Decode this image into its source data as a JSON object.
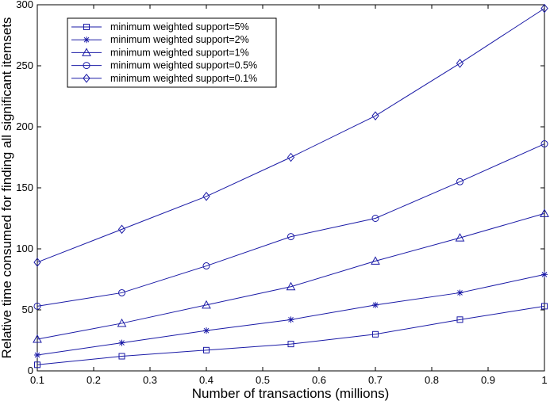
{
  "chart_data": {
    "type": "line",
    "title": "",
    "xlabel": "Number of transactions (millions)",
    "ylabel": "Relative time consumed for finding all significant itemsets",
    "x": [
      0.1,
      0.25,
      0.4,
      0.55,
      0.7,
      0.85,
      1.0
    ],
    "xlim": [
      0.1,
      1.0
    ],
    "ylim": [
      0,
      300
    ],
    "xticks": [
      "0.1",
      "0.2",
      "0.3",
      "0.4",
      "0.5",
      "0.6",
      "0.7",
      "0.8",
      "0.9",
      "1"
    ],
    "xtick_values": [
      0.1,
      0.2,
      0.3,
      0.4,
      0.5,
      0.6,
      0.7,
      0.8,
      0.9,
      1.0
    ],
    "yticks": [
      "0",
      "50",
      "100",
      "150",
      "200",
      "250",
      "300"
    ],
    "ytick_values": [
      0,
      50,
      100,
      150,
      200,
      250,
      300
    ],
    "grid": false,
    "legend_position": "top-left",
    "line_color": "#1a1aa6",
    "series": [
      {
        "name": "minimum weighted support=5%",
        "marker": "square",
        "values": [
          5,
          12,
          17,
          22,
          30,
          42,
          53
        ]
      },
      {
        "name": "minimum weighted support=2%",
        "marker": "star",
        "values": [
          13,
          23,
          33,
          42,
          54,
          64,
          79
        ]
      },
      {
        "name": "minimum weighted support=1%",
        "marker": "triangle",
        "values": [
          26,
          39,
          54,
          69,
          90,
          109,
          129
        ]
      },
      {
        "name": "minimum weighted support=0.5%",
        "marker": "circle",
        "values": [
          53,
          64,
          86,
          110,
          125,
          155,
          186
        ]
      },
      {
        "name": "minimum weighted support=0.1%",
        "marker": "diamond",
        "values": [
          89,
          116,
          143,
          175,
          209,
          252,
          297
        ]
      }
    ]
  }
}
